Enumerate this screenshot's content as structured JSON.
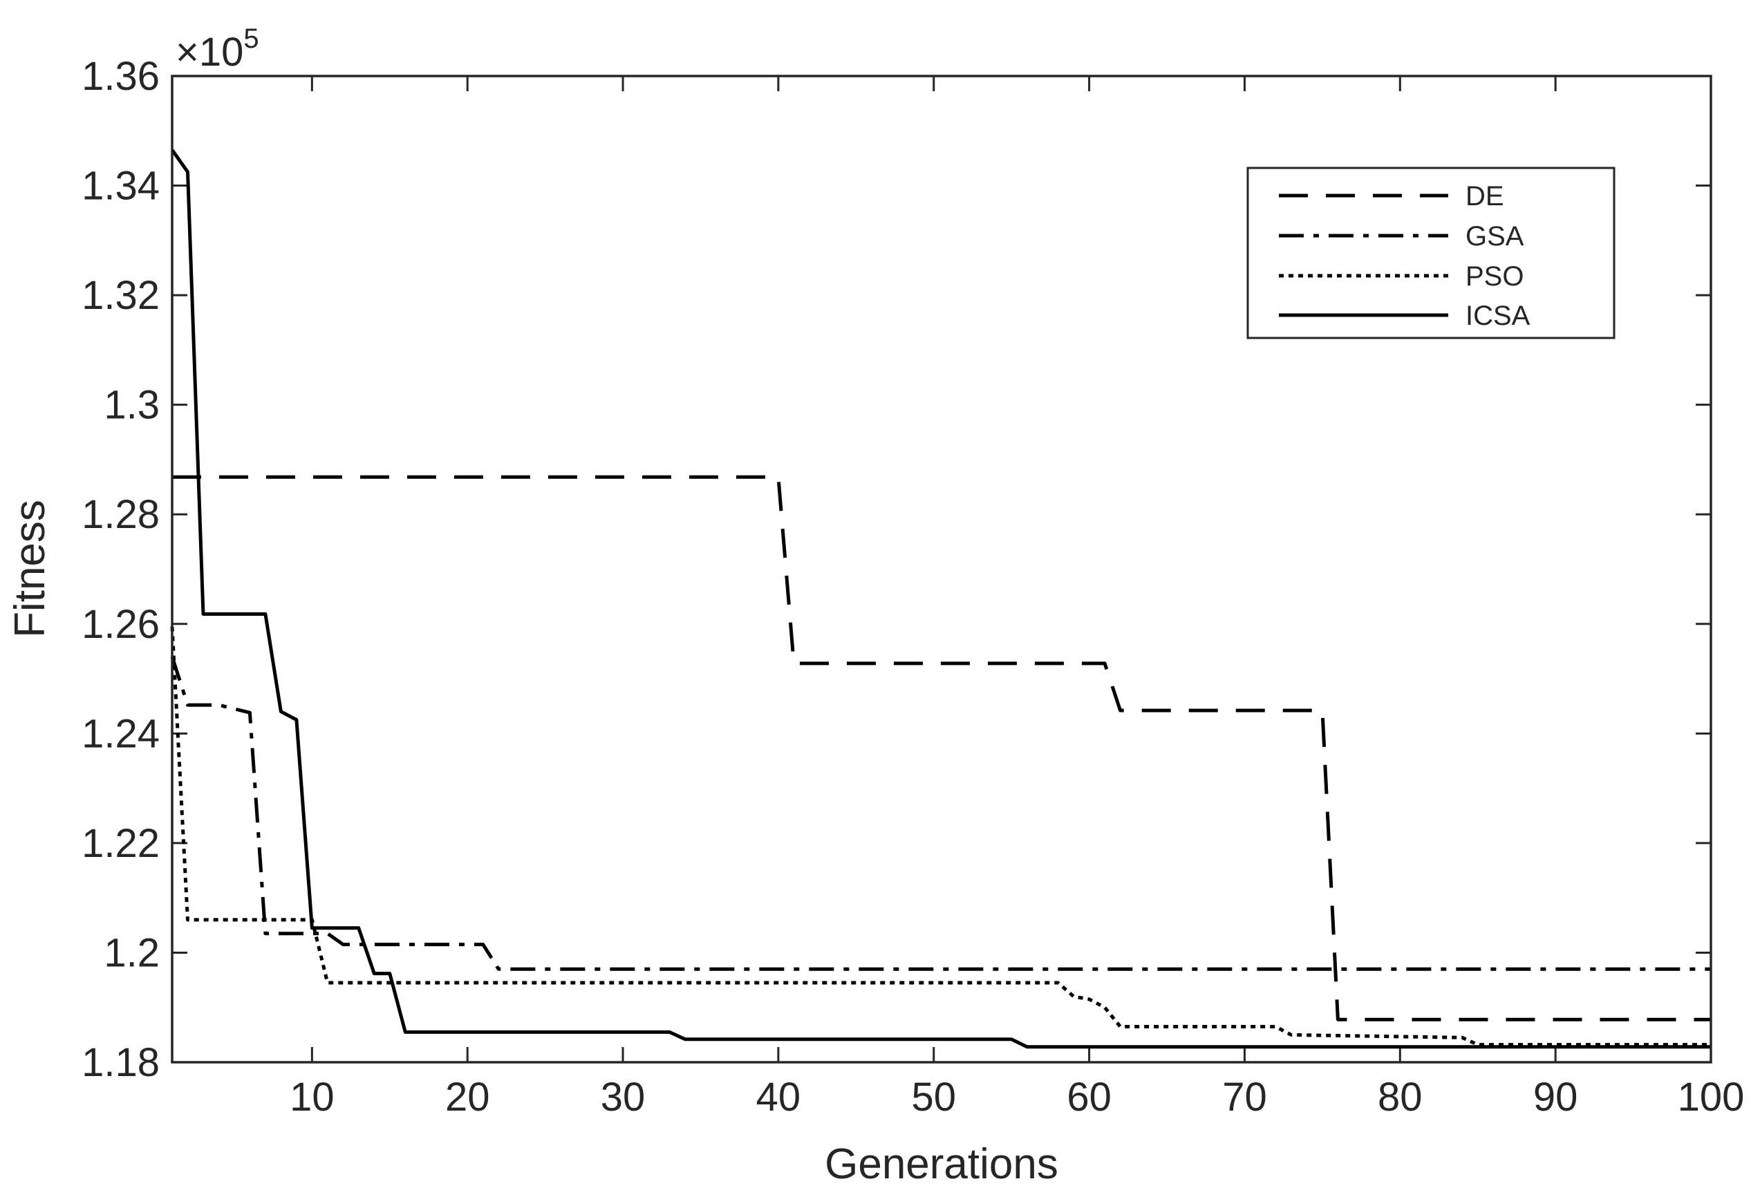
{
  "chart_data": {
    "type": "line",
    "title": "",
    "xlabel": "Generations",
    "ylabel": "Fitness",
    "multiplier_label": "×10",
    "multiplier_exponent": "5",
    "xlim": [
      1,
      100
    ],
    "ylim": [
      1.18,
      1.36
    ],
    "xticks": [
      10,
      20,
      30,
      40,
      50,
      60,
      70,
      80,
      90,
      100
    ],
    "xtick_labels": [
      "10",
      "20",
      "30",
      "40",
      "50",
      "60",
      "70",
      "80",
      "90",
      "100"
    ],
    "yticks": [
      1.18,
      1.2,
      1.22,
      1.24,
      1.26,
      1.28,
      1.3,
      1.32,
      1.34,
      1.36
    ],
    "ytick_labels": [
      "1.18",
      "1.2",
      "1.22",
      "1.24",
      "1.26",
      "1.28",
      "1.3",
      "1.32",
      "1.34",
      "1.36"
    ],
    "grid": false,
    "legend_position": "top-right",
    "series": [
      {
        "name": "DE",
        "style": "dashed",
        "points": [
          [
            1,
            1.2868
          ],
          [
            40,
            1.2868
          ],
          [
            41,
            1.2528
          ],
          [
            61,
            1.2528
          ],
          [
            62,
            1.2442
          ],
          [
            75,
            1.2442
          ],
          [
            76,
            1.1878
          ],
          [
            100,
            1.1878
          ]
        ]
      },
      {
        "name": "GSA",
        "style": "dash-dot",
        "points": [
          [
            1,
            1.254
          ],
          [
            2,
            1.2452
          ],
          [
            4,
            1.2452
          ],
          [
            6,
            1.2438
          ],
          [
            7,
            1.2035
          ],
          [
            11,
            1.2035
          ],
          [
            12,
            1.2015
          ],
          [
            21,
            1.2015
          ],
          [
            22,
            1.197
          ],
          [
            100,
            1.197
          ]
        ]
      },
      {
        "name": "PSO",
        "style": "dotted",
        "points": [
          [
            1,
            1.2595
          ],
          [
            2,
            1.206
          ],
          [
            10,
            1.206
          ],
          [
            11,
            1.1945
          ],
          [
            58,
            1.1945
          ],
          [
            59,
            1.192
          ],
          [
            60,
            1.1915
          ],
          [
            61,
            1.19
          ],
          [
            62,
            1.1865
          ],
          [
            72,
            1.1865
          ],
          [
            73,
            1.185
          ],
          [
            84,
            1.1845
          ],
          [
            85,
            1.1832
          ],
          [
            100,
            1.1832
          ]
        ]
      },
      {
        "name": "ICSA",
        "style": "solid",
        "points": [
          [
            1,
            1.3465
          ],
          [
            2,
            1.3425
          ],
          [
            3,
            1.2618
          ],
          [
            7,
            1.2618
          ],
          [
            8,
            1.244
          ],
          [
            9,
            1.2425
          ],
          [
            10,
            1.2045
          ],
          [
            13,
            1.2045
          ],
          [
            14,
            1.1962
          ],
          [
            15,
            1.1962
          ],
          [
            16,
            1.1855
          ],
          [
            33,
            1.1855
          ],
          [
            34,
            1.1842
          ],
          [
            55,
            1.1842
          ],
          [
            56,
            1.1828
          ],
          [
            100,
            1.1828
          ]
        ]
      }
    ]
  }
}
